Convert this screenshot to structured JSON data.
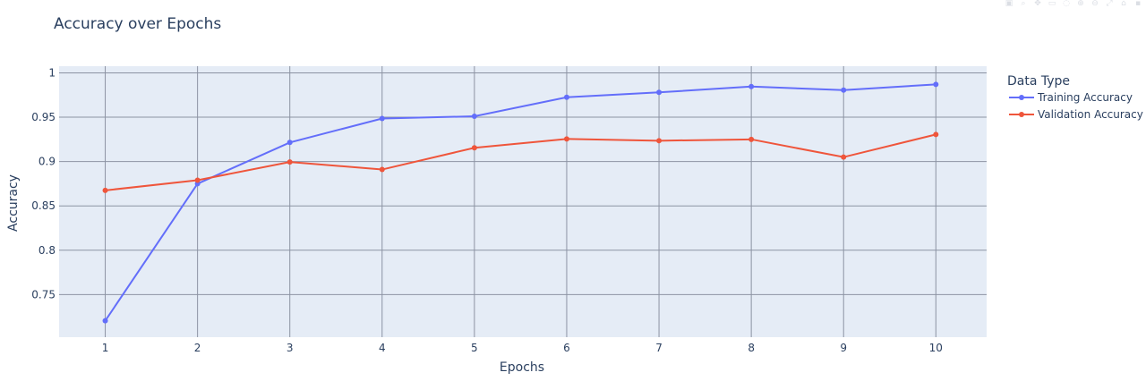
{
  "colors": {
    "plot_bg": "#e5ecf6",
    "grid": "#8c93a3",
    "training": "#636efa",
    "validation": "#ef553b",
    "text": "#2a3f5f"
  },
  "toolbar": {
    "icons": [
      "camera-icon",
      "zoom-icon",
      "pan-icon",
      "box-select-icon",
      "lasso-icon",
      "zoom-in-icon",
      "zoom-out-icon",
      "autoscale-icon",
      "reset-icon",
      "plotly-logo-icon"
    ]
  },
  "chart_data": {
    "type": "line",
    "title": "Accuracy over Epochs",
    "xlabel": "Epochs",
    "ylabel": "Accuracy",
    "x": [
      1,
      2,
      3,
      4,
      5,
      6,
      7,
      8,
      9,
      10
    ],
    "xlim": [
      0.5,
      10.55
    ],
    "ylim": [
      0.702,
      1.0075
    ],
    "x_ticks": [
      1,
      2,
      3,
      4,
      5,
      6,
      7,
      8,
      9,
      10
    ],
    "y_ticks": [
      0.75,
      0.8,
      0.85,
      0.9,
      0.95,
      1
    ],
    "y_tick_labels": [
      "0.75",
      "0.8",
      "0.85",
      "0.9",
      "0.95",
      "1"
    ],
    "grid": true,
    "legend_title": "Data Type",
    "legend_position": "right",
    "series": [
      {
        "name": "Training Accuracy",
        "color_key": "training",
        "values": [
          0.7205,
          0.875,
          0.9215,
          0.9485,
          0.951,
          0.9725,
          0.978,
          0.9845,
          0.9805,
          0.987
        ]
      },
      {
        "name": "Validation Accuracy",
        "color_key": "validation",
        "values": [
          0.8675,
          0.879,
          0.8995,
          0.891,
          0.9155,
          0.9255,
          0.9235,
          0.925,
          0.905,
          0.9305
        ]
      }
    ]
  }
}
